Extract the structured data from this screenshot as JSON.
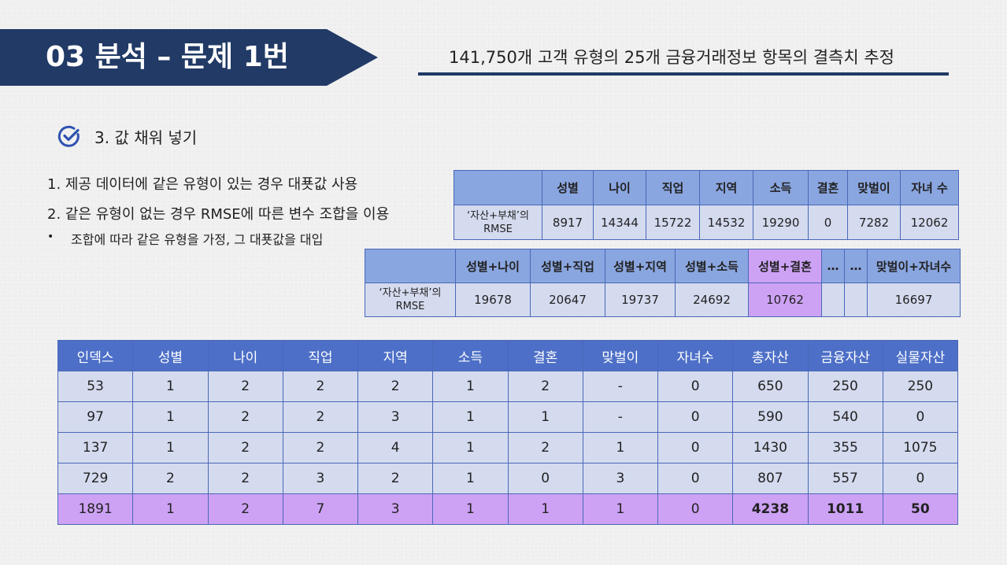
{
  "header": {
    "title": "03  분석 – 문제 1번",
    "subtitle": "141,750개 고객 유형의 25개 금융거래정보 항목의 결측치 추정"
  },
  "section": {
    "icon": "check-circle-icon",
    "title": "3. 값 채워 넣기"
  },
  "steps": {
    "step1": "1. 제공 데이터에 같은 유형이 있는 경우 대푯값 사용",
    "step2": "2. 같은 유형이 없는 경우 RMSE에 따른 변수 조합을 이용",
    "bullet_mark": "•",
    "bullet": "조합에 따라 같은 유형을 가정, 그 대푯값을 대입"
  },
  "single_table": {
    "row_label": "‘자산+부채’의 RMSE",
    "headers": [
      "성별",
      "나이",
      "직업",
      "지역",
      "소득",
      "결혼",
      "맞벌이",
      "자녀 수"
    ],
    "values": [
      "8917",
      "14344",
      "15722",
      "14532",
      "19290",
      "0",
      "7282",
      "12062"
    ]
  },
  "pair_table": {
    "row_label": "‘자산+부채’의 RMSE",
    "headers": [
      "성별+나이",
      "성별+직업",
      "성별+지역",
      "성별+소득",
      "성별+결혼",
      "…",
      "…",
      "맞벌이+자녀수"
    ],
    "values": [
      "19678",
      "20647",
      "19737",
      "24692",
      "10762",
      "",
      "",
      "16697"
    ],
    "highlight_column": "성별+결혼"
  },
  "main_table": {
    "headers": [
      "인덱스",
      "성별",
      "나이",
      "직업",
      "지역",
      "소득",
      "결혼",
      "맞벌이",
      "자녀수",
      "총자산",
      "금융자산",
      "실물자산"
    ],
    "rows": [
      [
        "53",
        "1",
        "2",
        "2",
        "2",
        "1",
        "2",
        "-",
        "0",
        "650",
        "250",
        "250"
      ],
      [
        "97",
        "1",
        "2",
        "2",
        "3",
        "1",
        "1",
        "-",
        "0",
        "590",
        "540",
        "0"
      ],
      [
        "137",
        "1",
        "2",
        "2",
        "4",
        "1",
        "2",
        "1",
        "0",
        "1430",
        "355",
        "1075"
      ],
      [
        "729",
        "2",
        "2",
        "3",
        "2",
        "1",
        "0",
        "3",
        "0",
        "807",
        "557",
        "0"
      ],
      [
        "1891",
        "1",
        "2",
        "7",
        "3",
        "1",
        "1",
        "1",
        "0",
        "4238",
        "1011",
        "50"
      ]
    ],
    "highlight_row_index": "1891"
  },
  "colors": {
    "banner": "#213a66",
    "table_header": "#8aa6e0",
    "table_main_header": "#4d6fc7",
    "table_cell": "#d4dbef",
    "highlight": "#cda2f5",
    "border": "#4a68b8"
  }
}
